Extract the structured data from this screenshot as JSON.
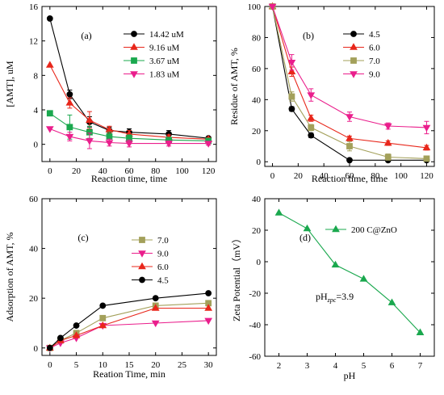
{
  "chart_data": [
    {
      "id": "a",
      "type": "line",
      "panel_label": "(a)",
      "xlabel": "Reaction time, time",
      "ylabel": "[AMT], uM",
      "xlim": [
        -6,
        126
      ],
      "ylim": [
        -2,
        16
      ],
      "xticks": [
        0,
        20,
        40,
        60,
        80,
        100,
        120
      ],
      "yticks": [
        0,
        4,
        8,
        12,
        16
      ],
      "legend_position": "top-right",
      "series": [
        {
          "name": "14.42 uM",
          "color": "#000000",
          "marker": "circle",
          "x": [
            0,
            15,
            30,
            45,
            60,
            90,
            120
          ],
          "y": [
            14.6,
            5.8,
            2.6,
            1.6,
            1.4,
            1.2,
            0.7
          ],
          "err": [
            0,
            0.5,
            0.6,
            0.4,
            0.4,
            0.4,
            0.2
          ]
        },
        {
          "name": "9.16 uM",
          "color": "#e8271b",
          "marker": "triangle-up",
          "x": [
            0,
            15,
            30,
            45,
            60,
            90,
            120
          ],
          "y": [
            9.2,
            4.8,
            2.8,
            1.7,
            1.2,
            0.8,
            0.6
          ],
          "err": [
            0,
            0.6,
            1.0,
            0.4,
            0.4,
            0.3,
            0.2
          ]
        },
        {
          "name": "3.67 uM",
          "color": "#1aa84e",
          "marker": "square",
          "x": [
            0,
            15,
            30,
            45,
            60,
            90,
            120
          ],
          "y": [
            3.6,
            2.0,
            1.4,
            0.9,
            0.7,
            0.5,
            0.4
          ],
          "err": [
            0,
            1.4,
            0.7,
            0.5,
            0.4,
            0.3,
            0.2
          ]
        },
        {
          "name": "1.83 uM",
          "color": "#ea1e8c",
          "marker": "triangle-down",
          "x": [
            0,
            15,
            30,
            45,
            60,
            90,
            120
          ],
          "y": [
            1.8,
            0.9,
            0.4,
            0.2,
            0.1,
            0.1,
            0.1
          ],
          "err": [
            0,
            0.5,
            0.9,
            0.4,
            0.4,
            0.3,
            0.2
          ]
        }
      ]
    },
    {
      "id": "b",
      "type": "line",
      "panel_label": "(b)",
      "xlabel": "Reaction time, time",
      "ylabel": "Residue of AMT, %",
      "xlim": [
        -6,
        126
      ],
      "ylim": [
        -3,
        100
      ],
      "xticks": [
        0,
        20,
        40,
        60,
        80,
        100,
        120
      ],
      "yticks": [
        0,
        20,
        40,
        60,
        80,
        100
      ],
      "legend_position": "top-right",
      "series": [
        {
          "name": "4.5",
          "color": "#000000",
          "marker": "circle",
          "x": [
            0,
            15,
            30,
            60,
            90,
            120
          ],
          "y": [
            100,
            34,
            17,
            1,
            1,
            1
          ],
          "err": [
            0,
            1.5,
            1.5,
            1.0,
            0.5,
            0.5
          ]
        },
        {
          "name": "6.0",
          "color": "#e8271b",
          "marker": "triangle-up",
          "x": [
            0,
            15,
            30,
            60,
            90,
            120
          ],
          "y": [
            100,
            58,
            28,
            15,
            12,
            9
          ],
          "err": [
            0,
            3,
            2,
            1.5,
            1.5,
            1.5
          ]
        },
        {
          "name": "7.0",
          "color": "#a3a05a",
          "marker": "square",
          "x": [
            0,
            15,
            30,
            60,
            90,
            120
          ],
          "y": [
            100,
            42,
            22,
            10,
            3,
            2
          ],
          "err": [
            0,
            3,
            2,
            3,
            2,
            1.5
          ]
        },
        {
          "name": "9.0",
          "color": "#ea1e8c",
          "marker": "triangle-down",
          "x": [
            0,
            15,
            30,
            60,
            90,
            120
          ],
          "y": [
            100,
            64,
            43,
            29,
            23,
            22
          ],
          "err": [
            0,
            5,
            4,
            3,
            2,
            4
          ]
        }
      ]
    },
    {
      "id": "c",
      "type": "line",
      "panel_label": "(c)",
      "xlabel": "Reation Time, min",
      "ylabel": "Adsorption of AMT, %",
      "xlim": [
        -1.5,
        31.5
      ],
      "ylim": [
        -3,
        60
      ],
      "xticks": [
        0,
        5,
        10,
        15,
        20,
        25,
        30
      ],
      "yticks": [
        0,
        20,
        40,
        60
      ],
      "legend_position": "top-right",
      "series": [
        {
          "name": "7.0",
          "color": "#a3a05a",
          "marker": "square",
          "x": [
            0,
            2,
            5,
            10,
            20,
            30
          ],
          "y": [
            0,
            3,
            6,
            12,
            17,
            18
          ]
        },
        {
          "name": "9.0",
          "color": "#ea1e8c",
          "marker": "triangle-down",
          "x": [
            0,
            2,
            5,
            10,
            20,
            30
          ],
          "y": [
            0,
            2,
            4,
            9,
            10,
            11
          ]
        },
        {
          "name": "6.0",
          "color": "#e8271b",
          "marker": "triangle-up",
          "x": [
            0,
            2,
            5,
            10,
            20,
            30
          ],
          "y": [
            0,
            3,
            5,
            9,
            16,
            16
          ]
        },
        {
          "name": "4.5",
          "color": "#000000",
          "marker": "circle",
          "x": [
            0,
            2,
            5,
            10,
            20,
            30
          ],
          "y": [
            0,
            4,
            9,
            17,
            20,
            22
          ]
        }
      ]
    },
    {
      "id": "d",
      "type": "line",
      "panel_label": "(d)",
      "xlabel": "pH",
      "ylabel": "Zeta Potential（mV）",
      "xlim": [
        1.5,
        7.5
      ],
      "ylim": [
        -60,
        40
      ],
      "xticks": [
        2,
        3,
        4,
        5,
        6,
        7
      ],
      "yticks": [
        -60,
        -40,
        -20,
        0,
        20,
        40
      ],
      "legend_position": "top-right",
      "annotation": {
        "main": "pH",
        "sub": "zpc",
        "rest": "=3.9"
      },
      "series": [
        {
          "name": "200 C@ZnO",
          "color": "#1aa84e",
          "marker": "triangle-up",
          "x": [
            2,
            3,
            4,
            5,
            6,
            7
          ],
          "y": [
            31,
            21,
            -2,
            -11,
            -26,
            -45
          ]
        }
      ]
    }
  ]
}
